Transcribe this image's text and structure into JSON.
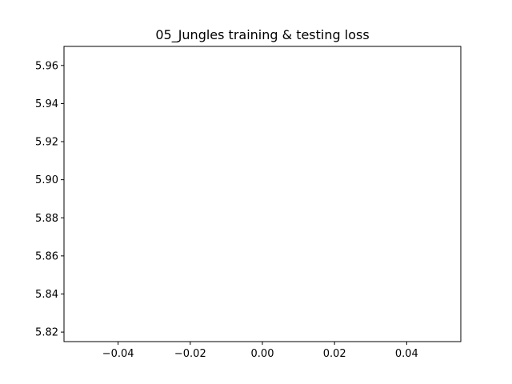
{
  "chart_data": {
    "type": "line",
    "title": "05_Jungles training & testing loss",
    "xlabel": "",
    "ylabel": "",
    "xlim": [
      -0.055,
      0.055
    ],
    "ylim": [
      5.815,
      5.97
    ],
    "x_ticks": [
      -0.04,
      -0.02,
      0.0,
      0.02,
      0.04
    ],
    "x_tick_labels": [
      "−0.04",
      "−0.02",
      "0.00",
      "0.02",
      "0.04"
    ],
    "y_ticks": [
      5.82,
      5.84,
      5.86,
      5.88,
      5.9,
      5.92,
      5.94,
      5.96
    ],
    "y_tick_labels": [
      "5.82",
      "5.84",
      "5.86",
      "5.88",
      "5.90",
      "5.92",
      "5.94",
      "5.96"
    ],
    "series": [],
    "grid": false,
    "legend": "none"
  }
}
